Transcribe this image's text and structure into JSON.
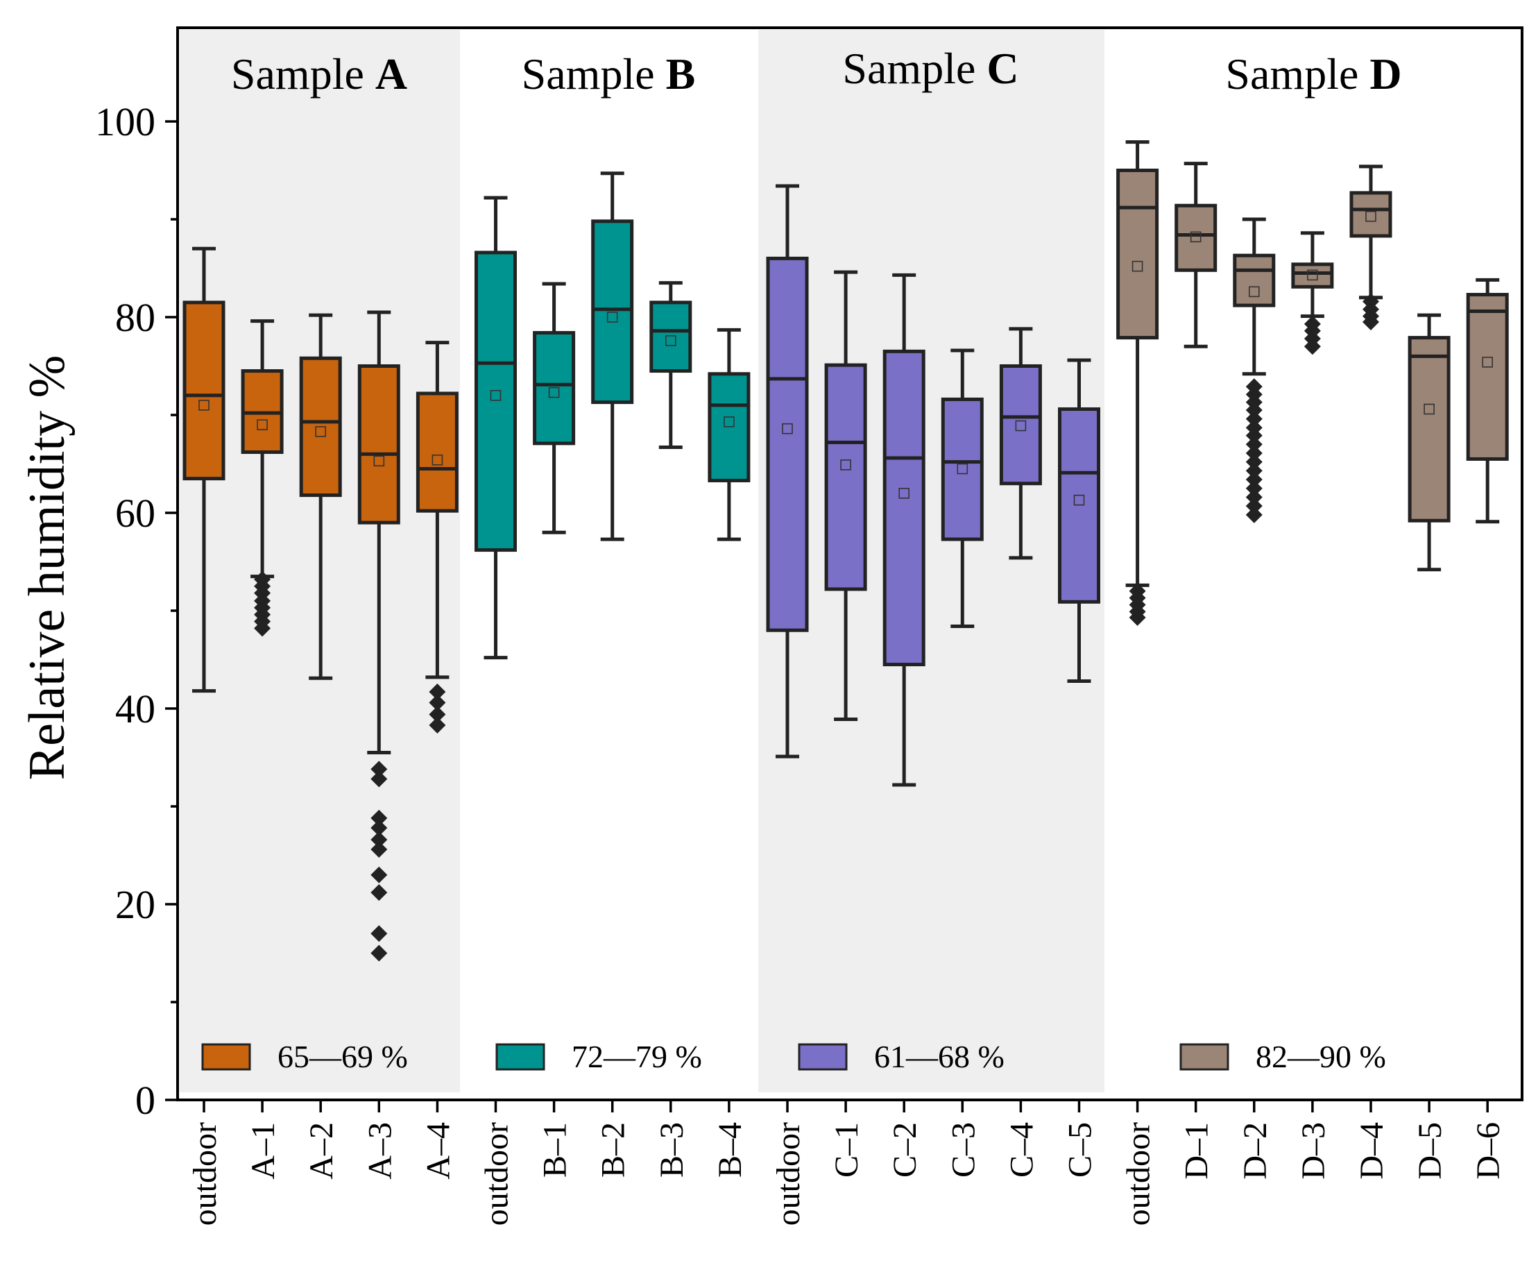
{
  "chart_data": {
    "type": "box",
    "ylabel": "Relative humidity  %",
    "ylim": [
      0,
      110
    ],
    "yticks": [
      0,
      20,
      40,
      60,
      80,
      100
    ],
    "groups": [
      {
        "name": "Sample A",
        "title_prefix": "Sample ",
        "title_letter": "A",
        "color": "#c8630e",
        "shaded": true,
        "legend_label": "65—69 %",
        "boxes": [
          {
            "label": "outdoor",
            "min": 41.8,
            "q1": 63.5,
            "median": 72.0,
            "q3": 81.5,
            "max": 87.0,
            "mean": 71.0,
            "outliers": []
          },
          {
            "label": "A–1",
            "min": 53.5,
            "q1": 66.2,
            "median": 70.2,
            "q3": 74.5,
            "max": 79.6,
            "mean": 69.0,
            "outliers": [
              53.2,
              52.5,
              51.8,
              51.0,
              50.3,
              49.6,
              48.9,
              48.2
            ]
          },
          {
            "label": "A–2",
            "min": 43.1,
            "q1": 61.8,
            "median": 69.3,
            "q3": 75.8,
            "max": 80.2,
            "mean": 68.3,
            "outliers": []
          },
          {
            "label": "A–3",
            "min": 35.5,
            "q1": 59.0,
            "median": 66.0,
            "q3": 75.0,
            "max": 80.5,
            "mean": 65.3,
            "outliers": [
              33.8,
              32.8,
              28.8,
              27.8,
              26.6,
              25.6,
              23.0,
              21.2,
              17.0,
              15.0
            ]
          },
          {
            "label": "A–4",
            "min": 43.2,
            "q1": 60.2,
            "median": 64.5,
            "q3": 72.2,
            "max": 77.4,
            "mean": 65.4,
            "outliers": [
              41.7,
              40.6,
              39.4,
              38.3
            ]
          }
        ]
      },
      {
        "name": "Sample B",
        "title_prefix": "Sample ",
        "title_letter": "B",
        "color": "#009490",
        "shaded": false,
        "legend_label": "72—79 %",
        "boxes": [
          {
            "label": "outdoor",
            "min": 45.2,
            "q1": 56.2,
            "median": 75.3,
            "q3": 86.6,
            "max": 92.2,
            "mean": 72.0,
            "outliers": []
          },
          {
            "label": "B–1",
            "min": 58.0,
            "q1": 67.1,
            "median": 73.1,
            "q3": 78.4,
            "max": 83.4,
            "mean": 72.3,
            "outliers": []
          },
          {
            "label": "B–2",
            "min": 57.3,
            "q1": 71.3,
            "median": 80.8,
            "q3": 89.8,
            "max": 94.7,
            "mean": 80.0,
            "outliers": []
          },
          {
            "label": "B–3",
            "min": 66.7,
            "q1": 74.5,
            "median": 78.6,
            "q3": 81.5,
            "max": 83.5,
            "mean": 77.6,
            "outliers": []
          },
          {
            "label": "B–4",
            "min": 57.3,
            "q1": 63.3,
            "median": 71.0,
            "q3": 74.2,
            "max": 78.7,
            "mean": 69.3,
            "outliers": []
          }
        ]
      },
      {
        "name": "Sample C",
        "title_prefix": "Sample ",
        "title_letter": "C",
        "color": "#7b70c8",
        "shaded": true,
        "legend_label": "61—68 %",
        "boxes": [
          {
            "label": "outdoor",
            "min": 35.1,
            "q1": 48.0,
            "median": 73.7,
            "q3": 86.0,
            "max": 93.4,
            "mean": 68.6,
            "outliers": []
          },
          {
            "label": "C–1",
            "min": 38.9,
            "q1": 52.2,
            "median": 67.2,
            "q3": 75.1,
            "max": 84.6,
            "mean": 64.9,
            "outliers": []
          },
          {
            "label": "C–2",
            "min": 32.2,
            "q1": 44.5,
            "median": 65.6,
            "q3": 76.5,
            "max": 84.3,
            "mean": 62.0,
            "outliers": []
          },
          {
            "label": "C–3",
            "min": 48.4,
            "q1": 57.3,
            "median": 65.2,
            "q3": 71.6,
            "max": 76.6,
            "mean": 64.5,
            "outliers": []
          },
          {
            "label": "C–4",
            "min": 55.4,
            "q1": 63.0,
            "median": 69.8,
            "q3": 75.0,
            "max": 78.8,
            "mean": 68.9,
            "outliers": []
          },
          {
            "label": "C–5",
            "min": 42.8,
            "q1": 50.9,
            "median": 64.1,
            "q3": 70.6,
            "max": 75.6,
            "mean": 61.3,
            "outliers": []
          }
        ]
      },
      {
        "name": "Sample D",
        "title_prefix": "Sample ",
        "title_letter": "D",
        "color": "#9b8577",
        "shaded": false,
        "legend_label": "82—90 %",
        "boxes": [
          {
            "label": "outdoor",
            "min": 52.6,
            "q1": 77.9,
            "median": 91.2,
            "q3": 95.0,
            "max": 97.9,
            "mean": 85.2,
            "outliers": [
              52.0,
              51.3,
              50.6,
              49.9,
              49.3
            ]
          },
          {
            "label": "D–1",
            "min": 77.0,
            "q1": 84.8,
            "median": 88.4,
            "q3": 91.4,
            "max": 95.7,
            "mean": 88.2,
            "outliers": []
          },
          {
            "label": "D–2",
            "min": 74.2,
            "q1": 81.2,
            "median": 84.8,
            "q3": 86.3,
            "max": 90.0,
            "mean": 82.6,
            "outliers": [
              72.9,
              72.1,
              71.3,
              70.5,
              69.6,
              68.7,
              67.9,
              67.0,
              66.1,
              65.2,
              64.3,
              63.4,
              62.5,
              61.6,
              60.7,
              59.8
            ]
          },
          {
            "label": "D–3",
            "min": 80.1,
            "q1": 83.1,
            "median": 84.5,
            "q3": 85.4,
            "max": 88.6,
            "mean": 84.3,
            "outliers": [
              79.3,
              78.6,
              77.8,
              77.0
            ]
          },
          {
            "label": "D–4",
            "min": 82.0,
            "q1": 88.3,
            "median": 91.0,
            "q3": 92.7,
            "max": 95.4,
            "mean": 90.3,
            "outliers": [
              81.6,
              80.8,
              80.1,
              79.5
            ]
          },
          {
            "label": "D–5",
            "min": 54.2,
            "q1": 59.2,
            "median": 76.0,
            "q3": 77.9,
            "max": 80.2,
            "mean": 70.6,
            "outliers": []
          },
          {
            "label": "D–6",
            "min": 59.1,
            "q1": 65.5,
            "median": 80.6,
            "q3": 82.3,
            "max": 83.8,
            "mean": 75.4,
            "outliers": []
          }
        ]
      }
    ]
  }
}
